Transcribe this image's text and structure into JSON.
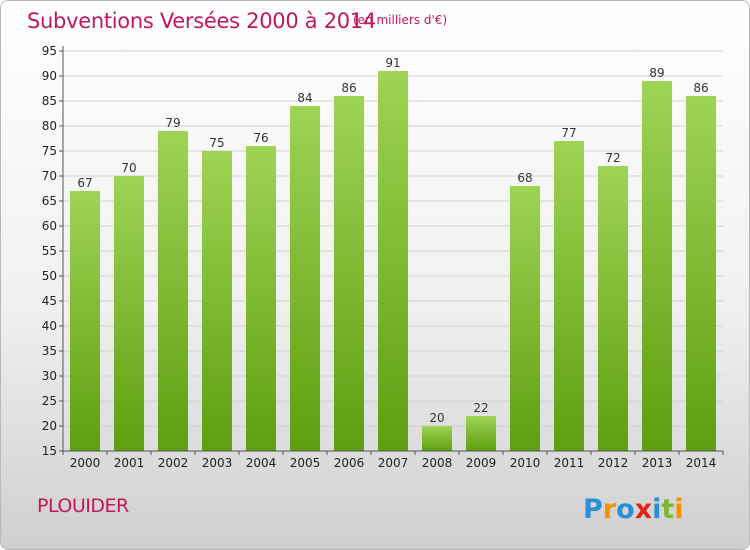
{
  "header": {
    "title": "Subventions Versées 2000 à 2014",
    "subtitle": "(en milliers d'€)"
  },
  "footer": {
    "commune": "PLOUIDER",
    "logo_text": "Proxiti"
  },
  "colors": {
    "title": "#c2185b",
    "bar_top": "#9ed454",
    "bar_bottom": "#5e9e10",
    "grid": "#d0d0d0"
  },
  "chart_data": {
    "type": "bar",
    "title": "Subventions Versées 2000 à 2014",
    "subtitle": "(en milliers d'€)",
    "xlabel": "",
    "ylabel": "",
    "categories": [
      "2000",
      "2001",
      "2002",
      "2003",
      "2004",
      "2005",
      "2006",
      "2007",
      "2008",
      "2009",
      "2010",
      "2011",
      "2012",
      "2013",
      "2014"
    ],
    "values": [
      67,
      70,
      79,
      75,
      76,
      84,
      86,
      91,
      20,
      22,
      68,
      77,
      72,
      89,
      86
    ],
    "ylim": [
      15,
      95
    ],
    "yticks": [
      15,
      20,
      25,
      30,
      35,
      40,
      45,
      50,
      55,
      60,
      65,
      70,
      75,
      80,
      85,
      90,
      95
    ],
    "grid": true,
    "data_labels": true
  }
}
